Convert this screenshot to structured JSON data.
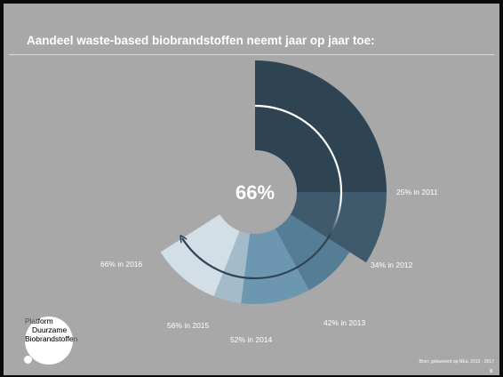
{
  "slide": {
    "title": "Aandeel waste-based biobrandstoffen neemt jaar op jaar toe:",
    "center_value": "66%",
    "source": "Bron: gebaseerd op NEa, 2012 - 2017",
    "page_number": "8"
  },
  "logo": {
    "text_line1": "Platform",
    "text_line2": "Duurzame",
    "text_line3": "Biobrandstoffen"
  },
  "chart_data": {
    "type": "pie",
    "title": "Aandeel waste-based biobrandstoffen neemt jaar op jaar toe:",
    "center_label": "66%",
    "categories": [
      "2011",
      "2012",
      "2013",
      "2014",
      "2015",
      "2016"
    ],
    "values": [
      25,
      34,
      42,
      52,
      56,
      66
    ],
    "labels": [
      "25% in 2011",
      "34% in 2012",
      "42% in 2013",
      "52% in 2014",
      "56% in 2015",
      "66% in 2016"
    ],
    "colors": [
      "#2e4452",
      "#3f5a6c",
      "#557d96",
      "#6d97b1",
      "#a2bccb",
      "#d3dfe6"
    ],
    "arrow": "clockwise arc indicating increase over the years"
  }
}
